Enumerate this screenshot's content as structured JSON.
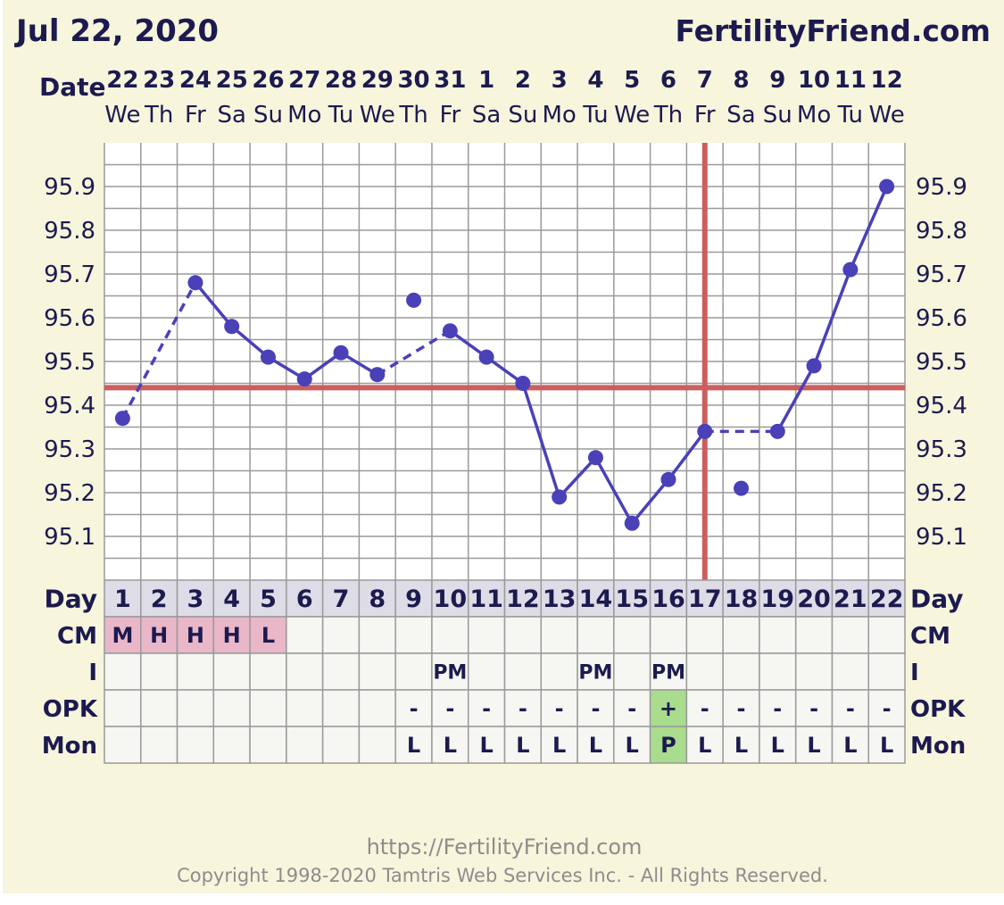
{
  "header": {
    "date": "Jul 22, 2020",
    "site": "FertilityFriend.com"
  },
  "labels": {
    "date": "Date",
    "day": "Day",
    "cm": "CM",
    "intercourse": "I",
    "opk": "OPK",
    "mon": "Mon"
  },
  "footer": {
    "url": "https://FertilityFriend.com",
    "copyright": "Copyright 1998-2020 Tamtris Web Services Inc. - All Rights Reserved."
  },
  "colors": {
    "background": "#f7f5dc",
    "plot_bg": "#ffffff",
    "grid": "#9a9a9a",
    "line": "#4a40b8",
    "coverline": "#cc5e5e",
    "text": "#1c1a4f",
    "day_row": "#dedce6",
    "cm_cell": "#e9b7c8",
    "positive_cell": "#a9dc8c",
    "empty_cell": "#f6f6f2"
  },
  "chart_data": {
    "type": "line",
    "title": "",
    "xlabel": "Day",
    "ylabel": "",
    "ylim": [
      95.0,
      96.0
    ],
    "y_ticks": [
      "95.1",
      "95.2",
      "95.3",
      "95.4",
      "95.5",
      "95.6",
      "95.7",
      "95.8",
      "95.9"
    ],
    "dates": [
      "22",
      "23",
      "24",
      "25",
      "26",
      "27",
      "28",
      "29",
      "30",
      "31",
      "1",
      "2",
      "3",
      "4",
      "5",
      "6",
      "7",
      "8",
      "9",
      "10",
      "11",
      "12"
    ],
    "weekdays": [
      "We",
      "Th",
      "Fr",
      "Sa",
      "Su",
      "Mo",
      "Tu",
      "We",
      "Th",
      "Fr",
      "Sa",
      "Su",
      "Mo",
      "Tu",
      "We",
      "Th",
      "Fr",
      "Sa",
      "Su",
      "Mo",
      "Tu",
      "We"
    ],
    "days": [
      1,
      2,
      3,
      4,
      5,
      6,
      7,
      8,
      9,
      10,
      11,
      12,
      13,
      14,
      15,
      16,
      17,
      18,
      19,
      20,
      21,
      22
    ],
    "temperatures": [
      95.37,
      null,
      95.68,
      95.58,
      95.51,
      95.46,
      95.52,
      95.47,
      95.64,
      95.57,
      95.51,
      95.45,
      95.19,
      95.28,
      95.13,
      95.23,
      95.34,
      95.21,
      95.34,
      95.49,
      95.71,
      95.9
    ],
    "excluded_days": [
      9,
      18
    ],
    "coverline": 95.44,
    "ovulation_day": 17,
    "cm": [
      "M",
      "H",
      "H",
      "H",
      "L",
      "",
      "",
      "",
      "",
      "",
      "",
      "",
      "",
      "",
      "",
      "",
      "",
      "",
      "",
      "",
      "",
      ""
    ],
    "intercourse": [
      "",
      "",
      "",
      "",
      "",
      "",
      "",
      "",
      "",
      "PM",
      "",
      "",
      "",
      "PM",
      "",
      "PM",
      "",
      "",
      "",
      "",
      "",
      ""
    ],
    "opk": [
      "",
      "",
      "",
      "",
      "",
      "",
      "",
      "",
      "-",
      "-",
      "-",
      "-",
      "-",
      "-",
      "-",
      "+",
      "-",
      "-",
      "-",
      "-",
      "-",
      "-"
    ],
    "mon": [
      "",
      "",
      "",
      "",
      "",
      "",
      "",
      "",
      "L",
      "L",
      "L",
      "L",
      "L",
      "L",
      "L",
      "P",
      "L",
      "L",
      "L",
      "L",
      "L",
      "L"
    ]
  }
}
